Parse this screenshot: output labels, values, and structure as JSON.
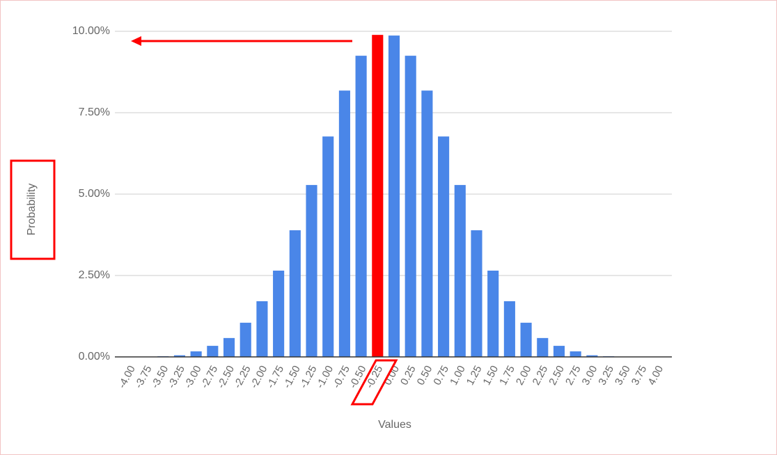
{
  "chart_data": {
    "type": "bar",
    "x_label": "Values",
    "y_label": "Probability",
    "categories": [
      "-4.00",
      "-3.75",
      "-3.50",
      "-3.25",
      "-3.00",
      "-2.75",
      "-2.50",
      "-2.25",
      "-2.00",
      "-1.75",
      "-1.50",
      "-1.25",
      "-1.00",
      "-0.75",
      "-0.50",
      "-0.25",
      "0.00",
      "0.25",
      "0.50",
      "0.75",
      "1.00",
      "1.25",
      "1.50",
      "1.75",
      "2.00",
      "2.25",
      "2.50",
      "2.75",
      "3.00",
      "3.25",
      "3.50",
      "3.75",
      "4.00"
    ],
    "values": [
      0,
      0.01,
      0.02,
      0.05,
      0.17,
      0.34,
      0.58,
      1.05,
      1.71,
      2.65,
      3.89,
      5.28,
      6.77,
      8.18,
      9.25,
      9.89,
      9.87,
      9.25,
      8.18,
      6.77,
      5.28,
      3.89,
      2.65,
      1.71,
      1.05,
      0.58,
      0.34,
      0.17,
      0.05,
      0.02,
      0.01,
      0,
      0
    ],
    "colors": [
      "#4a86e8",
      "#4a86e8",
      "#4a86e8",
      "#4a86e8",
      "#4a86e8",
      "#4a86e8",
      "#4a86e8",
      "#4a86e8",
      "#4a86e8",
      "#4a86e8",
      "#4a86e8",
      "#4a86e8",
      "#4a86e8",
      "#4a86e8",
      "#4a86e8",
      "#ff0000",
      "#4a86e8",
      "#4a86e8",
      "#4a86e8",
      "#4a86e8",
      "#4a86e8",
      "#4a86e8",
      "#4a86e8",
      "#4a86e8",
      "#4a86e8",
      "#4a86e8",
      "#4a86e8",
      "#4a86e8",
      "#4a86e8",
      "#4a86e8",
      "#4a86e8",
      "#4a86e8",
      "#4a86e8"
    ],
    "ylim": [
      0,
      10
    ],
    "yticks": [
      {
        "value": 0,
        "label": "0.00%"
      },
      {
        "value": 2.5,
        "label": "2.50%"
      },
      {
        "value": 5,
        "label": "5.00%"
      },
      {
        "value": 7.5,
        "label": "7.50%"
      },
      {
        "value": 10,
        "label": "10.00%"
      }
    ],
    "grid": true
  }
}
